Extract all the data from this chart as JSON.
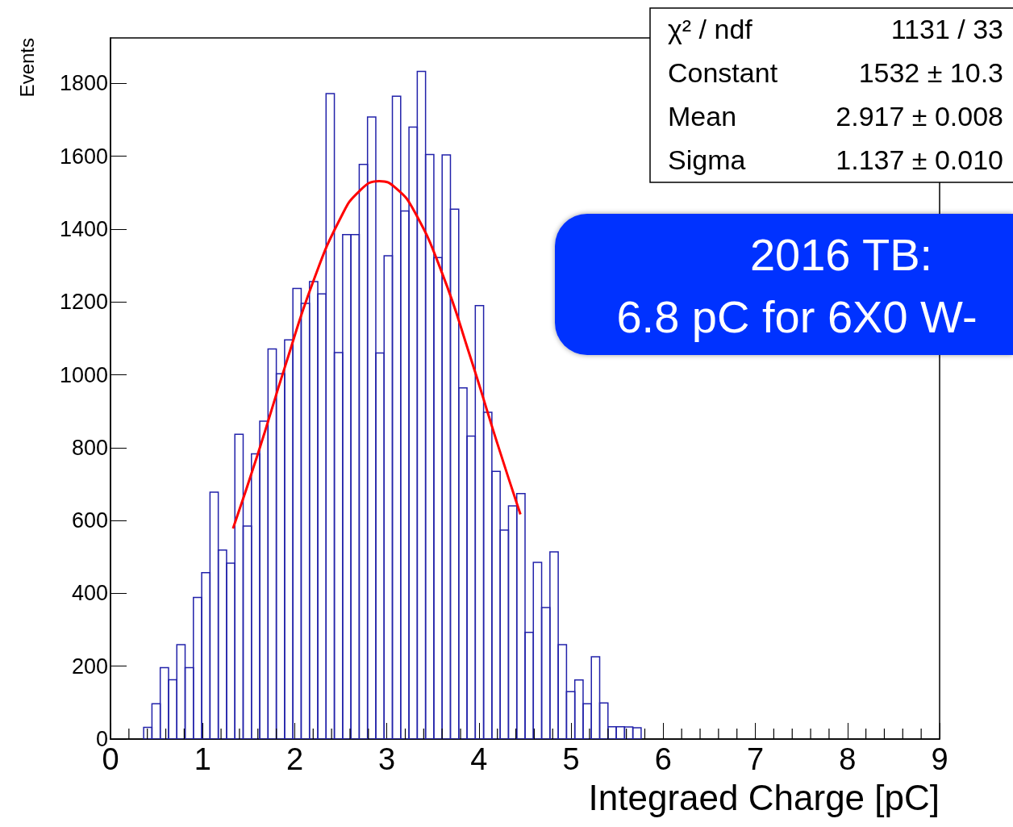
{
  "chart_data": {
    "type": "histogram",
    "xlabel": "Integraed Charge [pC]",
    "ylabel": "Events",
    "xlim": [
      0,
      9
    ],
    "ylim": [
      0,
      1925
    ],
    "xticks": [
      0,
      1,
      2,
      3,
      4,
      5,
      6,
      7,
      8,
      9
    ],
    "yticks": [
      0,
      200,
      400,
      600,
      800,
      1000,
      1200,
      1400,
      1600,
      1800
    ],
    "grid": false,
    "series": [
      {
        "color": "#2222aa",
        "bins": [
          0.36,
          0.45,
          0.54,
          0.63,
          0.72,
          0.81,
          0.9,
          0.99,
          1.08,
          1.17,
          1.26,
          1.35,
          1.44,
          1.53,
          1.62,
          1.71,
          1.8,
          1.89,
          1.98,
          2.07,
          2.16,
          2.25,
          2.34,
          2.43,
          2.52,
          2.61,
          2.7,
          2.79,
          2.88,
          2.97,
          3.06,
          3.15,
          3.24,
          3.33,
          3.42,
          3.51,
          3.6,
          3.69,
          3.78,
          3.87,
          3.96,
          4.05,
          4.14,
          4.23,
          4.32,
          4.41,
          4.5,
          4.59,
          4.68,
          4.77,
          4.86,
          4.95,
          5.04,
          5.13,
          5.22,
          5.31,
          5.4,
          5.49,
          5.58,
          5.67,
          5.76
        ],
        "values": [
          32,
          97,
          196,
          163,
          259,
          196,
          389,
          457,
          678,
          519,
          483,
          837,
          585,
          783,
          873,
          1071,
          1003,
          1096,
          1237,
          1196,
          1256,
          1222,
          1772,
          1061,
          1385,
          1385,
          1578,
          1708,
          1060,
          1327,
          1765,
          1450,
          1680,
          1833,
          1605,
          1322,
          1604,
          1455,
          964,
          832,
          1190,
          897,
          735,
          574,
          640,
          674,
          293,
          485,
          361,
          514,
          259,
          130,
          162,
          97,
          226,
          99,
          34,
          34,
          33,
          31
        ]
      },
      {
        "type": "line",
        "color": "#ff0000",
        "marker": "none",
        "x": [
          1.33,
          1.6,
          1.9,
          2.2,
          2.5,
          2.7,
          2.917,
          3.1,
          3.3,
          3.6,
          3.9,
          4.2,
          4.45
        ],
        "values": [
          578,
          783,
          1027,
          1256,
          1432,
          1504,
          1532,
          1512,
          1448,
          1279,
          1054,
          811,
          617
        ]
      }
    ],
    "annotations": [
      "χ² / ndf",
      "1131 / 33",
      "Constant",
      "1532 ± 10.3",
      "Mean",
      "2.917 ± 0.008",
      "Sigma",
      "1.137 ± 0.010",
      "2016 TB:",
      "6.8 pC for 6X0 W-"
    ]
  }
}
